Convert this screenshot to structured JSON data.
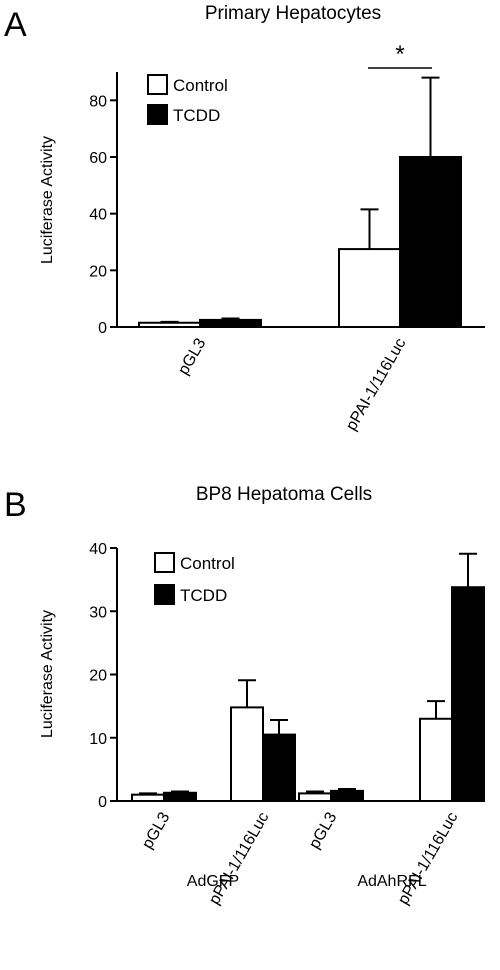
{
  "chart_data": [
    {
      "panel": "A",
      "type": "bar",
      "title": "Primary Hepatocytes",
      "ylabel": "Luciferase Activity",
      "ylim": [
        0,
        90
      ],
      "yticks": [
        "0",
        "20",
        "40",
        "60",
        "80"
      ],
      "categories": [
        "pGL3",
        "pPAI-1/116Luc"
      ],
      "series": [
        {
          "name": "Control",
          "color": "#ffffff",
          "values": [
            1.5,
            27.5
          ],
          "errors": [
            0.3,
            14
          ]
        },
        {
          "name": "TCDD",
          "color": "#000000",
          "values": [
            2.5,
            60
          ],
          "errors": [
            0.5,
            28
          ]
        }
      ],
      "legend": {
        "position": "top-left",
        "labels": [
          "Control",
          "TCDD"
        ]
      },
      "annotation": "*"
    },
    {
      "panel": "B",
      "type": "bar",
      "title": "BP8 Hepatoma Cells",
      "ylabel": "Luciferase Activity",
      "ylim": [
        0,
        40
      ],
      "yticks": [
        "0",
        "10",
        "20",
        "30",
        "40"
      ],
      "categories": [
        "pGL3",
        "pPAI-1/116Luc",
        "pGL3",
        "pPAI-1/116Luc"
      ],
      "groups": [
        "AdGFP",
        "AdAhRFL"
      ],
      "series": [
        {
          "name": "Control",
          "color": "#ffffff",
          "values": [
            1.0,
            14.8,
            1.2,
            13.0
          ],
          "errors": [
            0.2,
            4.3,
            0.3,
            2.8
          ]
        },
        {
          "name": "TCDD",
          "color": "#000000",
          "values": [
            1.3,
            10.5,
            1.6,
            33.8
          ],
          "errors": [
            0.2,
            2.3,
            0.3,
            5.3
          ]
        }
      ],
      "legend": {
        "position": "top-left",
        "labels": [
          "Control",
          "TCDD"
        ]
      }
    }
  ]
}
